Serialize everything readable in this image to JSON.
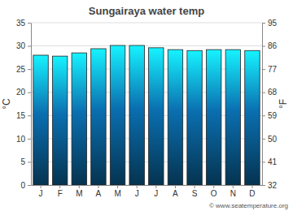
{
  "chart_data": {
    "type": "bar",
    "title": "Sungairaya water temp",
    "ylabel": "°C",
    "y2label": "°F",
    "annotations": [
      "© www.seatemperature.org"
    ],
    "categories": [
      "J",
      "F",
      "M",
      "A",
      "M",
      "J",
      "J",
      "A",
      "S",
      "O",
      "N",
      "D"
    ],
    "values": [
      28.0,
      27.8,
      28.5,
      29.4,
      30.1,
      30.1,
      29.6,
      29.2,
      29.0,
      29.2,
      29.2,
      29.0
    ],
    "color": "#0a6fb0",
    "ylim": [
      0,
      35
    ],
    "yticks": [
      0,
      5,
      10,
      15,
      20,
      25,
      30,
      35
    ],
    "y2lim": [
      32,
      95
    ],
    "y2ticks": [
      32,
      41,
      50,
      59,
      68,
      77,
      86,
      95
    ],
    "grid": true
  }
}
